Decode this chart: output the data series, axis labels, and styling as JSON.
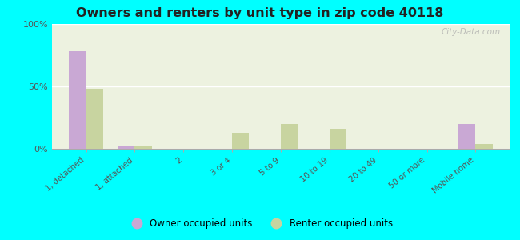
{
  "title": "Owners and renters by unit type in zip code 40118",
  "categories": [
    "1, detached",
    "1, attached",
    "2",
    "3 or 4",
    "5 to 9",
    "10 to 19",
    "20 to 49",
    "50 or more",
    "Mobile home"
  ],
  "owner_values": [
    78,
    2,
    0,
    0,
    0,
    0,
    0,
    0,
    20
  ],
  "renter_values": [
    48,
    2,
    0,
    13,
    20,
    16,
    0,
    0,
    4
  ],
  "owner_color": "#c9a8d4",
  "renter_color": "#c8d4a0",
  "background_color": "#00ffff",
  "plot_bg_color": "#edf2e0",
  "ylim": [
    0,
    100
  ],
  "yticks": [
    0,
    50,
    100
  ],
  "ytick_labels": [
    "0%",
    "50%",
    "100%"
  ],
  "bar_width": 0.35,
  "legend_owner": "Owner occupied units",
  "legend_renter": "Renter occupied units",
  "watermark": "City-Data.com"
}
